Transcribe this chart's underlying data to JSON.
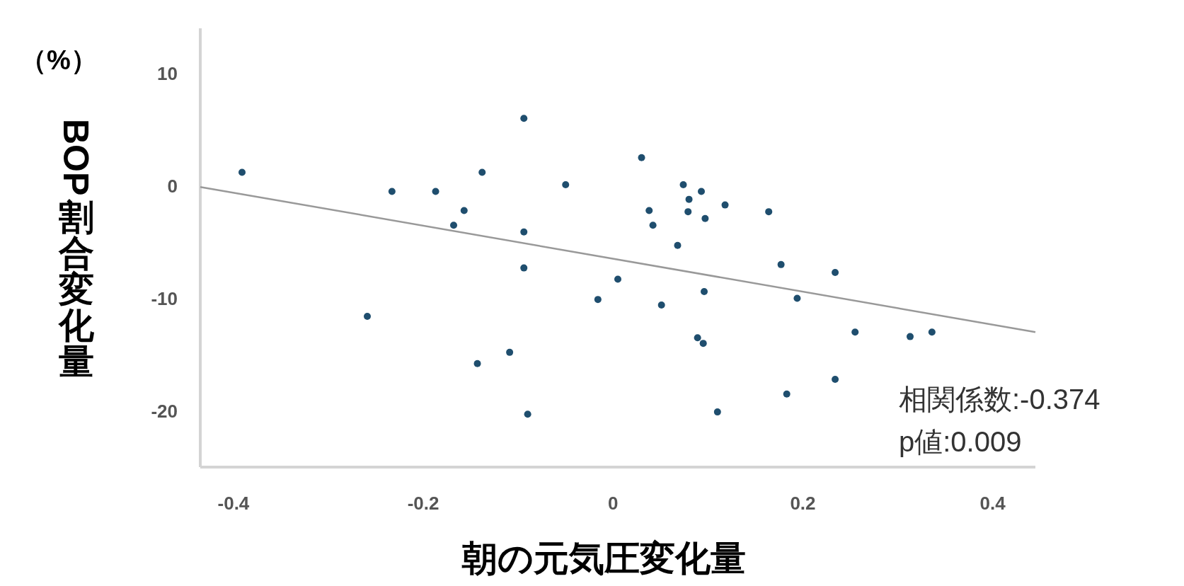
{
  "chart_data": {
    "type": "scatter",
    "xlabel": "朝の元気圧変化量",
    "ylabel": "BOP割合変化量",
    "annotations": [
      "（%）",
      "相関係数:-0.374",
      "p値:0.009"
    ],
    "xlim": [
      -0.435,
      0.445
    ],
    "ylim": [
      -25,
      14
    ],
    "xticks": [
      -0.4,
      -0.2,
      0,
      0.2,
      0.4
    ],
    "yticks": [
      -20,
      -10,
      0,
      10
    ],
    "grid": false,
    "marker": "circle",
    "series": [
      {
        "color": "#1f4e6e",
        "x": [
          -0.391,
          -0.094,
          -0.233,
          -0.187,
          -0.138,
          -0.157,
          -0.168,
          -0.094,
          -0.05,
          -0.094,
          -0.259,
          -0.109,
          -0.143,
          -0.09,
          0.005,
          -0.016,
          0.03,
          0.074,
          0.093,
          0.08,
          0.038,
          0.079,
          0.118,
          0.042,
          0.097,
          0.164,
          0.068,
          0.177,
          0.234,
          0.096,
          0.051,
          0.194,
          0.089,
          0.095,
          0.255,
          0.313,
          0.336,
          0.234,
          0.183,
          0.11
        ],
        "values": [
          1.2,
          6.0,
          -0.5,
          -0.5,
          1.2,
          -2.2,
          -3.5,
          -4.1,
          0.1,
          -7.3,
          -11.6,
          -14.8,
          -15.8,
          -20.3,
          -8.3,
          -10.1,
          2.5,
          0.1,
          -0.5,
          -1.2,
          -2.2,
          -2.3,
          -1.7,
          -3.5,
          -2.9,
          -2.3,
          -5.3,
          -7.0,
          -7.7,
          -9.4,
          -10.6,
          -10.0,
          -13.5,
          -14.0,
          -13.0,
          -13.4,
          -13.0,
          -17.2,
          -18.5,
          -20.1
        ]
      },
      {
        "type": "line",
        "color": "#999999",
        "line_style": "solid",
        "marker": "none",
        "x": [
          -0.435,
          0.445
        ],
        "values": [
          -0.1,
          -13.0
        ]
      }
    ]
  }
}
